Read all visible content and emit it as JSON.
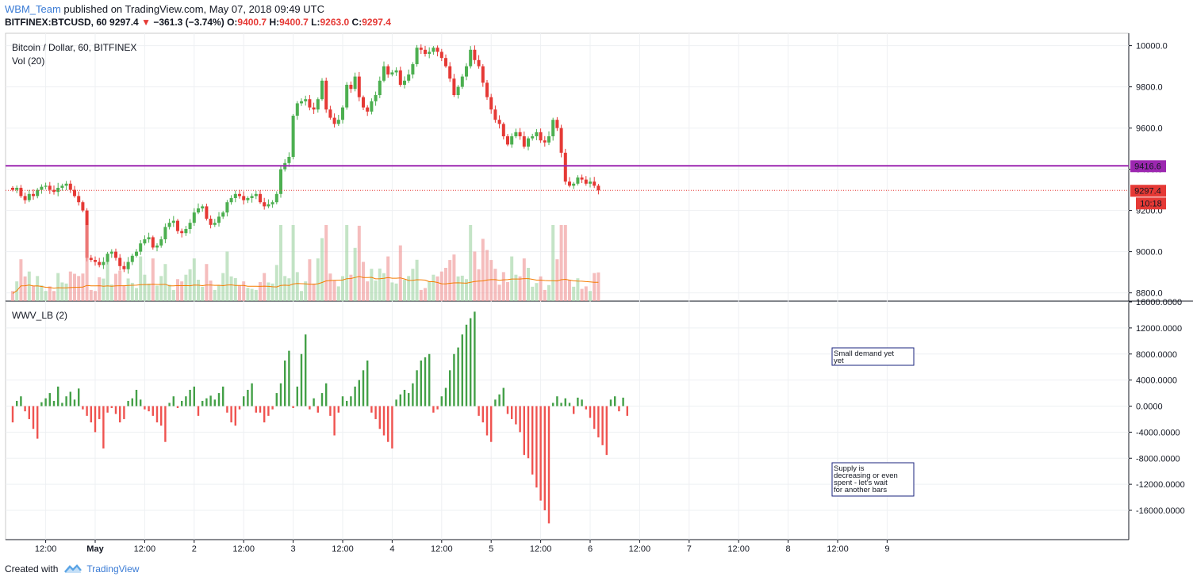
{
  "header": {
    "user": "WBM_Team",
    "published_text": "published on TradingView.com, May 07, 2018 09:49 UTC",
    "symbol": "BITFINEX:BTCUSD, 60",
    "last": "9297.4",
    "arrow": "▼",
    "change": "−361.3 (−3.74%)",
    "o_label": "O:",
    "o_value": "9400.7",
    "h_label": "H:",
    "h_value": "9400.7",
    "l_label": "L:",
    "l_value": "9263.0",
    "c_label": "C:",
    "c_value": "9297.4"
  },
  "footer": {
    "created_with": "Created with",
    "brand": "TradingView"
  },
  "chart_data": [
    {
      "type": "candlestick",
      "title": "Bitcoin / Dollar, 60, BITFINEX",
      "volume_label": "Vol (20)",
      "ylim": [
        8760,
        10060
      ],
      "yticks": [
        "10000.0",
        "9800.0",
        "9600.0",
        "9400.0",
        "9200.0",
        "9000.0",
        "8800.0"
      ],
      "ytick_values": [
        10000,
        9800,
        9600,
        9400,
        9200,
        9000,
        8800
      ],
      "horizontal_line": {
        "value": 9416.6,
        "label": "9416.6",
        "color": "#9c27b0"
      },
      "last_price": {
        "value": 9297.4,
        "label": "9297.4",
        "countdown": "10:18",
        "color": "#e53935"
      },
      "bull_color": "#4caf50",
      "bear_color": "#e53935",
      "volume_ma_color": "#f57c00",
      "closes": [
        9300,
        9310,
        9270,
        9250,
        9280,
        9270,
        9300,
        9315,
        9320,
        9300,
        9290,
        9310,
        9320,
        9330,
        9300,
        9270,
        9240,
        9200,
        8970,
        8960,
        8950,
        8935,
        8950,
        8990,
        9000,
        8970,
        8930,
        8915,
        8950,
        8980,
        9000,
        9040,
        9060,
        9070,
        9020,
        9030,
        9060,
        9120,
        9140,
        9150,
        9100,
        9090,
        9110,
        9140,
        9190,
        9210,
        9220,
        9160,
        9130,
        9140,
        9170,
        9190,
        9240,
        9260,
        9280,
        9270,
        9250,
        9260,
        9270,
        9280,
        9240,
        9220,
        9230,
        9240,
        9280,
        9400,
        9430,
        9460,
        9660,
        9720,
        9730,
        9740,
        9700,
        9690,
        9740,
        9830,
        9690,
        9650,
        9620,
        9640,
        9700,
        9810,
        9790,
        9850,
        9750,
        9700,
        9680,
        9730,
        9760,
        9830,
        9900,
        9860,
        9870,
        9880,
        9810,
        9830,
        9860,
        9910,
        9990,
        9980,
        9960,
        9970,
        9990,
        9970,
        9940,
        9900,
        9840,
        9760,
        9800,
        9850,
        9900,
        9980,
        9930,
        9900,
        9820,
        9750,
        9690,
        9640,
        9620,
        9560,
        9520,
        9560,
        9580,
        9560,
        9510,
        9550,
        9560,
        9580,
        9540,
        9530,
        9560,
        9640,
        9600,
        9480,
        9340,
        9320,
        9330,
        9360,
        9350,
        9330,
        9340,
        9320,
        9297
      ],
      "volume_ma_label": "MA"
    },
    {
      "type": "bar",
      "title": "WWV_LB (2)",
      "ylim": [
        -20500,
        16000
      ],
      "yticks": [
        "16000.0000",
        "12000.0000",
        "8000.0000",
        "4000.0000",
        "0.0000",
        "-4000.0000",
        "-8000.0000",
        "-12000.0000",
        "-16000.0000"
      ],
      "ytick_values": [
        16000,
        12000,
        8000,
        4000,
        0,
        -4000,
        -8000,
        -12000,
        -16000
      ],
      "positive_color": "#43a047",
      "negative_color": "#ef5350",
      "values": [
        -2500,
        800,
        1500,
        -800,
        -2000,
        -3500,
        -5000,
        600,
        1200,
        2000,
        800,
        3000,
        500,
        1500,
        2200,
        1000,
        2700,
        -500,
        -1500,
        -2500,
        -4000,
        -2000,
        -6500,
        -1000,
        -300,
        -1200,
        -2500,
        -2000,
        800,
        1200,
        2500,
        1000,
        -500,
        -800,
        -1500,
        -2500,
        -3000,
        -5500,
        500,
        1500,
        -300,
        800,
        1500,
        2500,
        3000,
        -1500,
        800,
        1200,
        1600,
        1000,
        2000,
        3000,
        -1000,
        -2500,
        -3000,
        -500,
        1500,
        2500,
        3500,
        -1000,
        -1000,
        -2500,
        -1500,
        -500,
        2000,
        3500,
        7000,
        8500,
        -300,
        3000,
        8000,
        11000,
        -500,
        1200,
        -1000,
        2000,
        3500,
        -1500,
        -4500,
        -1000,
        1500,
        800,
        1500,
        3000,
        4000,
        5500,
        7000,
        -1000,
        -2000,
        -3500,
        -4500,
        -5500,
        -6500,
        1000,
        1800,
        2500,
        2000,
        3500,
        5500,
        7000,
        7500,
        8000,
        -1000,
        -500,
        1500,
        2800,
        5500,
        8000,
        9000,
        11000,
        12500,
        13500,
        14500,
        -1500,
        -2500,
        -4500,
        -5500,
        1000,
        1800,
        2800,
        -1200,
        -2000,
        -2800,
        -4000,
        -7500,
        -8000,
        -10500,
        -12500,
        -14500,
        -16000,
        -18000,
        500,
        1500,
        500,
        1200,
        500,
        -1200,
        1300,
        1000,
        -500,
        -1800,
        -3500,
        -4800,
        -6000,
        -7500,
        1000,
        1500,
        -800,
        1300,
        -1500
      ],
      "annotations": [
        {
          "text_lines": [
            "Small demand yet",
            "yet"
          ]
        },
        {
          "text_lines": [
            "Supply is",
            "decreasing or even",
            "spent - let's wait",
            "for another bars"
          ]
        }
      ]
    }
  ],
  "x_axis": {
    "labels": [
      "12:00",
      "May",
      "12:00",
      "2",
      "12:00",
      "3",
      "12:00",
      "4",
      "12:00",
      "5",
      "12:00",
      "6",
      "12:00",
      "7",
      "12:00",
      "8",
      "12:00",
      "9"
    ],
    "bold": [
      false,
      true,
      false,
      false,
      false,
      false,
      false,
      false,
      false,
      false,
      false,
      false,
      false,
      false,
      false,
      false,
      false,
      false
    ],
    "bars_per_day": 24,
    "label_bar_index": [
      8,
      20,
      32,
      44,
      56,
      68,
      80,
      92,
      104,
      116,
      128,
      140,
      152,
      164,
      176,
      188,
      200,
      212
    ]
  }
}
